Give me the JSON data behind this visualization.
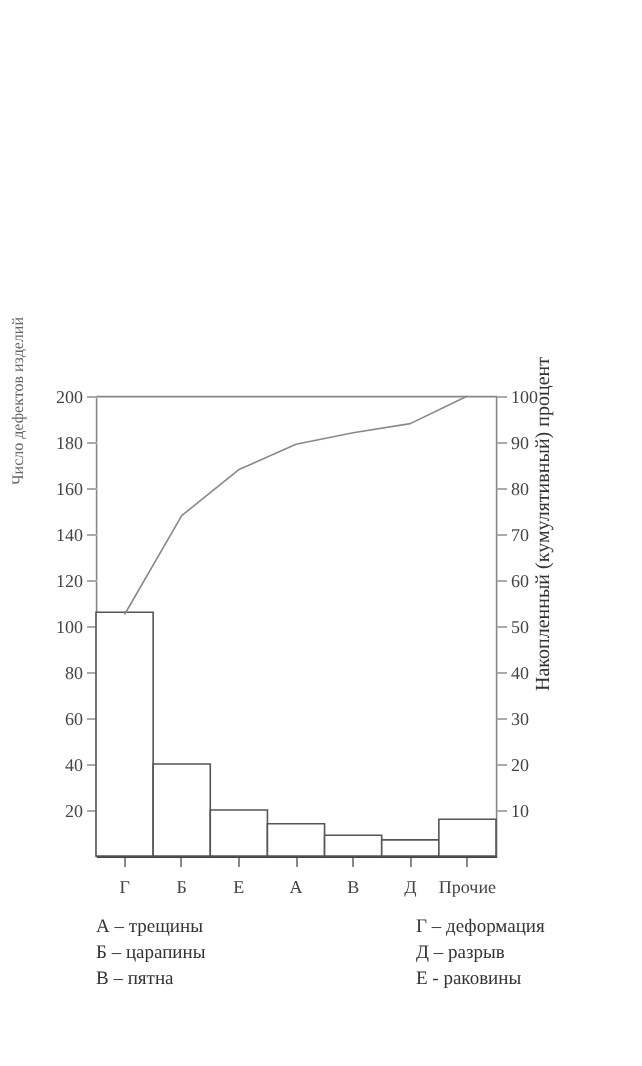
{
  "chart_data": {
    "type": "bar",
    "xlabel": null,
    "ylabel": "Число дефектов изделий",
    "y2label": "Накопленный (кумулятивный) процент",
    "categories": [
      "Г",
      "Б",
      "Е",
      "А",
      "В",
      "Д",
      "Прочие"
    ],
    "series": [
      {
        "color": "#ffffff",
        "values": [
          106,
          40,
          20,
          14,
          9,
          7,
          16
        ]
      },
      {
        "type": "line",
        "axis": "y2",
        "color": "#888888",
        "values": [
          52.5,
          74,
          84,
          89.5,
          92,
          94,
          100
        ]
      }
    ],
    "ylim": [
      0,
      200
    ],
    "yticks": [
      20,
      40,
      60,
      80,
      100,
      120,
      140,
      160,
      180,
      200
    ],
    "y2lim": [
      0,
      100
    ],
    "y2ticks": [
      10,
      20,
      30,
      40,
      50,
      60,
      70,
      80,
      90,
      100
    ],
    "grid": false,
    "marker": "none",
    "line_style": "solid",
    "annotations": [
      "А – трещины",
      "Б – царапины",
      "В – пятна",
      "Г – деформация",
      "Д – разрыв",
      "Е - раковины"
    ]
  }
}
